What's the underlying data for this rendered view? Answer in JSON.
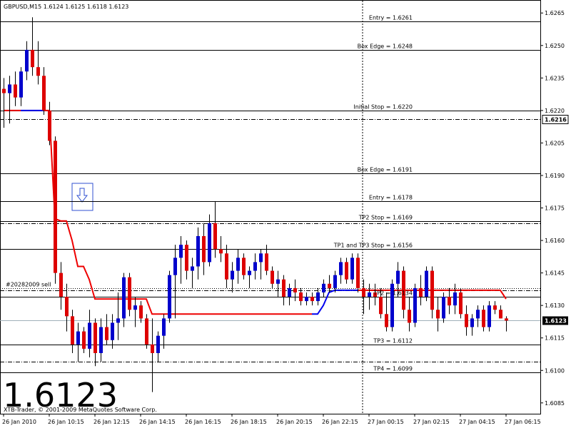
{
  "chart_data": {
    "type": "candlestick",
    "header": "GBPUSD,M15  1.6124 1.6125 1.6118 1.6123",
    "footer": "XTB-Trader, © 2001-2009 MetaQuotes Software Corp.",
    "categories": [
      "26 Jan 2010",
      null,
      null,
      null,
      null,
      null,
      null,
      null,
      "26 Jan 10:15",
      null,
      null,
      null,
      null,
      null,
      null,
      null,
      "26 Jan 12:15",
      null,
      null,
      null,
      null,
      null,
      null,
      null,
      "26 Jan 14:15",
      null,
      null,
      null,
      null,
      null,
      null,
      null,
      "26 Jan 16:15",
      null,
      null,
      null,
      null,
      null,
      null,
      null,
      "26 Jan 18:15",
      null,
      null,
      null,
      null,
      null,
      null,
      null,
      "26 Jan 20:15",
      null,
      null,
      null,
      null,
      null,
      null,
      null,
      "26 Jan 22:15",
      null,
      null,
      null,
      null,
      null,
      null,
      null,
      "27 Jan 00:15",
      null,
      null,
      null,
      null,
      null,
      null,
      null,
      "27 Jan 02:15",
      null,
      null,
      null,
      null,
      null,
      null,
      null,
      "27 Jan 04:15",
      null,
      null,
      null,
      null,
      null,
      null,
      null,
      "27 Jan 06:15"
    ],
    "open": [
      1.623,
      1.6228,
      1.6232,
      1.6226,
      1.6238,
      1.6248,
      1.624,
      1.6236,
      1.622,
      1.6206,
      1.6145,
      1.6134,
      1.6125,
      1.6112,
      1.6118,
      1.611,
      1.6122,
      1.6108,
      1.612,
      1.6114,
      1.6122,
      1.6124,
      1.6143,
      1.6128,
      1.613,
      1.6124,
      1.6112,
      1.6108,
      1.6116,
      1.6124,
      1.6144,
      1.6152,
      1.6158,
      1.6146,
      1.6148,
      1.6162,
      1.615,
      1.6168,
      1.6156,
      1.6154,
      1.6142,
      1.6146,
      1.6152,
      1.6144,
      1.6146,
      1.615,
      1.6154,
      1.6146,
      1.614,
      1.6142,
      1.6134,
      1.6138,
      1.6136,
      1.6132,
      1.6134,
      1.6132,
      1.6136,
      1.614,
      1.6138,
      1.6144,
      1.615,
      1.6142,
      1.6152,
      1.6138,
      1.6134,
      1.6136,
      1.6134,
      1.6126,
      1.612,
      1.614,
      1.6146,
      1.6128,
      1.6122,
      1.6138,
      1.6134,
      1.6146,
      1.6128,
      1.6124,
      1.6134,
      1.613,
      1.6136,
      1.6126,
      1.612,
      1.6124,
      1.6128,
      1.612,
      1.613,
      1.6128,
      1.6124
    ],
    "high": [
      1.6235,
      1.6236,
      1.6238,
      1.624,
      1.6252,
      1.6263,
      1.6252,
      1.624,
      1.6224,
      1.6208,
      1.615,
      1.614,
      1.6128,
      1.6122,
      1.612,
      1.6128,
      1.6124,
      1.6124,
      1.6126,
      1.6126,
      1.6136,
      1.6145,
      1.6145,
      1.6134,
      1.6132,
      1.6126,
      1.6124,
      1.6118,
      1.6126,
      1.6146,
      1.6158,
      1.6162,
      1.616,
      1.6152,
      1.6166,
      1.6168,
      1.6172,
      1.6178,
      1.6162,
      1.6158,
      1.615,
      1.6156,
      1.6154,
      1.6148,
      1.6154,
      1.6156,
      1.6158,
      1.6148,
      1.6146,
      1.6144,
      1.614,
      1.6142,
      1.6138,
      1.6136,
      1.6136,
      1.6138,
      1.6142,
      1.6144,
      1.6146,
      1.6152,
      1.6152,
      1.6154,
      1.6154,
      1.6142,
      1.614,
      1.614,
      1.6138,
      1.6136,
      1.6142,
      1.615,
      1.6148,
      1.6134,
      1.614,
      1.6144,
      1.6148,
      1.6148,
      1.6134,
      1.6136,
      1.6138,
      1.614,
      1.6138,
      1.613,
      1.6126,
      1.613,
      1.613,
      1.6132,
      1.6132,
      1.613,
      1.6125
    ],
    "low": [
      1.6212,
      1.6214,
      1.6222,
      1.6222,
      1.6234,
      1.6236,
      1.6232,
      1.6218,
      1.6204,
      1.614,
      1.6128,
      1.6118,
      1.6108,
      1.6104,
      1.6108,
      1.6106,
      1.6102,
      1.6104,
      1.6112,
      1.611,
      1.6114,
      1.612,
      1.6125,
      1.612,
      1.6122,
      1.611,
      1.609,
      1.6104,
      1.611,
      1.6122,
      1.6124,
      1.614,
      1.6142,
      1.6138,
      1.6142,
      1.6144,
      1.6148,
      1.6152,
      1.615,
      1.6138,
      1.6136,
      1.614,
      1.6142,
      1.6138,
      1.6142,
      1.6142,
      1.6144,
      1.6138,
      1.6134,
      1.613,
      1.613,
      1.6132,
      1.613,
      1.613,
      1.613,
      1.613,
      1.6134,
      1.6136,
      1.6136,
      1.614,
      1.614,
      1.614,
      1.6136,
      1.6126,
      1.6128,
      1.613,
      1.6124,
      1.6118,
      1.6118,
      1.6134,
      1.6124,
      1.6118,
      1.612,
      1.613,
      1.6132,
      1.6124,
      1.6118,
      1.6122,
      1.6126,
      1.6126,
      1.6124,
      1.6116,
      1.6116,
      1.612,
      1.6118,
      1.6118,
      1.6126,
      1.6124,
      1.6118
    ],
    "close": [
      1.6228,
      1.6232,
      1.6226,
      1.6238,
      1.6248,
      1.624,
      1.6236,
      1.622,
      1.6206,
      1.6145,
      1.6134,
      1.6125,
      1.6112,
      1.6118,
      1.611,
      1.6122,
      1.6108,
      1.612,
      1.6114,
      1.6122,
      1.6124,
      1.6143,
      1.6128,
      1.613,
      1.6124,
      1.6112,
      1.6108,
      1.6116,
      1.6124,
      1.6144,
      1.6152,
      1.6158,
      1.6146,
      1.6148,
      1.6162,
      1.615,
      1.6168,
      1.6156,
      1.6154,
      1.6142,
      1.6146,
      1.6152,
      1.6144,
      1.6146,
      1.615,
      1.6154,
      1.6146,
      1.614,
      1.6142,
      1.6134,
      1.6138,
      1.6136,
      1.6132,
      1.6134,
      1.6132,
      1.6136,
      1.614,
      1.6138,
      1.6144,
      1.615,
      1.6142,
      1.6152,
      1.6138,
      1.6134,
      1.6136,
      1.6134,
      1.6126,
      1.612,
      1.614,
      1.6146,
      1.6128,
      1.6122,
      1.6138,
      1.6134,
      1.6146,
      1.6128,
      1.6124,
      1.6134,
      1.613,
      1.6136,
      1.6126,
      1.612,
      1.6124,
      1.6128,
      1.612,
      1.613,
      1.6128,
      1.6124,
      1.6123
    ],
    "up_color": "#0000cc",
    "down_color": "#dd0000",
    "overlays": [
      {
        "color": "#ee0000",
        "values": [
          1.622,
          1.622,
          1.622,
          1.622,
          null,
          null,
          null,
          1.622,
          1.622,
          1.617,
          1.6169,
          1.6169,
          1.616,
          1.6148,
          1.6148,
          1.6142,
          1.6133,
          1.6133,
          1.6133,
          1.6133,
          1.6133,
          1.6133,
          1.6133,
          1.6133,
          1.6133,
          1.6133,
          1.6126,
          1.6126,
          1.6126,
          1.6126,
          1.6126,
          1.6126,
          1.6126,
          1.6126,
          1.6126,
          1.6126,
          1.6126,
          1.6126,
          1.6126,
          1.6126,
          1.6126,
          1.6126,
          1.6126,
          1.6126,
          1.6126,
          1.6126,
          1.6126,
          1.6126,
          1.6126,
          1.6126,
          1.6126,
          1.6126,
          1.6126,
          1.6126,
          1.6126,
          null,
          null,
          null,
          null,
          null,
          null,
          null,
          1.6137,
          1.6137,
          1.6137,
          1.6137,
          1.6137,
          1.6137,
          1.6137,
          1.6137,
          1.6137,
          1.6137,
          1.6137,
          1.6137,
          1.6137,
          1.6137,
          1.6137,
          1.6137,
          1.6137,
          1.6137,
          1.6137,
          1.6137,
          1.6137,
          1.6137,
          1.6137,
          1.6137,
          1.6137,
          1.6137,
          1.6133
        ]
      },
      {
        "color": "#0000ee",
        "values": [
          null,
          null,
          null,
          1.622,
          1.622,
          1.622,
          1.622,
          1.622,
          null,
          null,
          null,
          null,
          null,
          null,
          null,
          null,
          null,
          null,
          null,
          null,
          null,
          null,
          null,
          null,
          null,
          null,
          null,
          null,
          null,
          null,
          null,
          null,
          null,
          null,
          null,
          null,
          null,
          null,
          null,
          null,
          null,
          null,
          null,
          null,
          null,
          null,
          null,
          null,
          null,
          null,
          null,
          null,
          null,
          null,
          1.6126,
          1.6126,
          1.613,
          1.6136,
          1.6137,
          1.6137,
          1.6137,
          1.6137,
          1.6137,
          null,
          null,
          null,
          null,
          null,
          null,
          null,
          null,
          null,
          null,
          null,
          null,
          null,
          null,
          null,
          null,
          null,
          null,
          null,
          null,
          null,
          null,
          null,
          null,
          null,
          null
        ]
      }
    ],
    "levels": [
      {
        "label": "Entry = 1.6261",
        "value": 1.6261
      },
      {
        "label": "Box Edge = 1.6248",
        "value": 1.6248
      },
      {
        "label": "Initial Stop = 1.6220",
        "value": 1.622
      },
      {
        "label": "Box Edge = 1.6191",
        "value": 1.6191
      },
      {
        "label": "Entry = 1.6178",
        "value": 1.6178
      },
      {
        "label": "TP2 Stop = 1.6169",
        "value": 1.6169
      },
      {
        "label": "TP1 and TP3 Stop = 1.6156",
        "value": 1.6156
      },
      {
        "label": "TP2 = 1.6134",
        "value": 1.6134
      },
      {
        "label": "TP3 = 1.6112",
        "value": 1.6112
      },
      {
        "label": "TP4 = 1.6099",
        "value": 1.6099
      }
    ],
    "dashdot_lines": [
      1.6168,
      1.6137,
      1.6104
    ],
    "order": {
      "label": "#20282009 sell",
      "value": 1.6138
    },
    "marker": 1.6216,
    "bid": 1.6123,
    "ylim": [
      1.608,
      1.6271
    ],
    "yticks": [
      {
        "value": 1.6265,
        "label": "1.6265"
      },
      {
        "value": 1.625,
        "label": "1.6250"
      },
      {
        "value": 1.6235,
        "label": "1.6235"
      },
      {
        "value": 1.622,
        "label": "1.6220"
      },
      {
        "value": 1.6205,
        "label": "1.6205"
      },
      {
        "value": 1.619,
        "label": "1.6190"
      },
      {
        "value": 1.6175,
        "label": "1.6175"
      },
      {
        "value": 1.616,
        "label": "1.6160"
      },
      {
        "value": 1.6145,
        "label": "1.6145"
      },
      {
        "value": 1.613,
        "label": "1.6130"
      },
      {
        "value": 1.6115,
        "label": "1.6115"
      },
      {
        "value": 1.61,
        "label": "1.6100"
      },
      {
        "value": 1.6085,
        "label": "1.6085"
      }
    ]
  }
}
